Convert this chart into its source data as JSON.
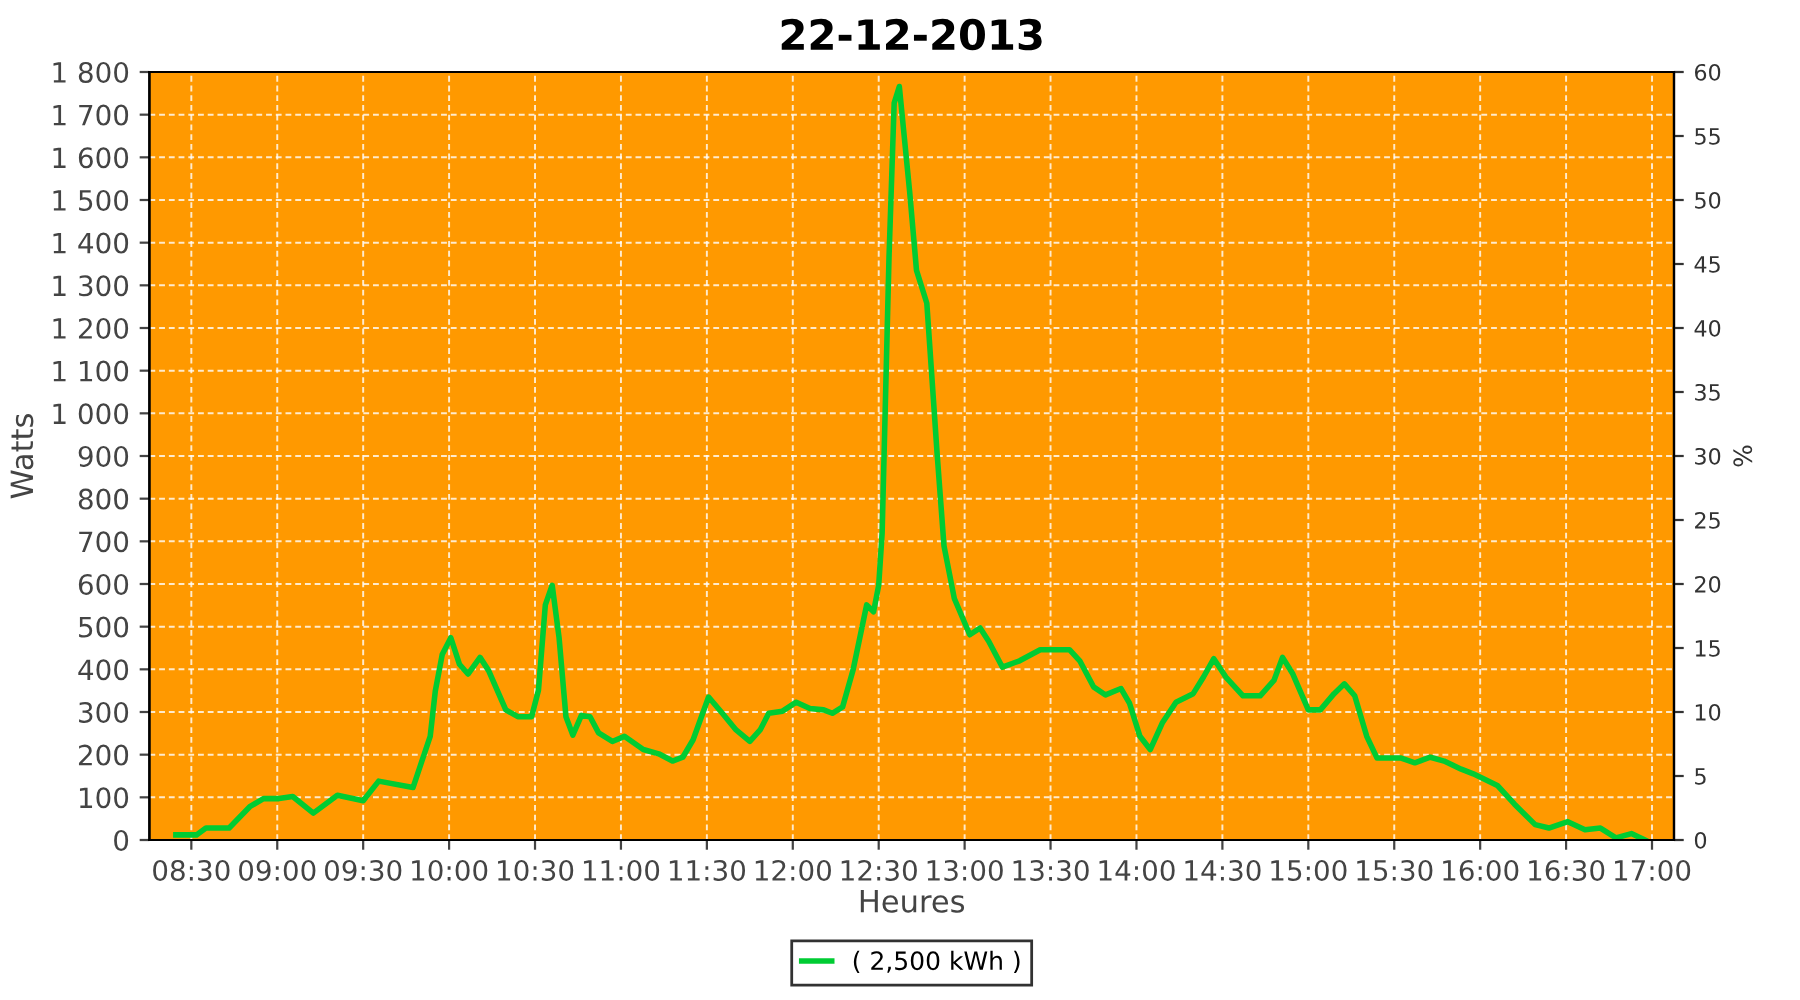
{
  "chart_data": {
    "type": "line",
    "title": "22-12-2013",
    "xlabel": "Heures",
    "ylabel": "Watts",
    "y2label": "%",
    "xlim": [
      8.256,
      17.128
    ],
    "xticks": [
      {
        "value": 8.5,
        "label": "08:30"
      },
      {
        "value": 9,
        "label": "09:00"
      },
      {
        "value": 9.5,
        "label": "09:30"
      },
      {
        "value": 10,
        "label": "10:00"
      },
      {
        "value": 10.5,
        "label": "10:30"
      },
      {
        "value": 11,
        "label": "11:00"
      },
      {
        "value": 11.5,
        "label": "11:30"
      },
      {
        "value": 12,
        "label": "12:00"
      },
      {
        "value": 12.5,
        "label": "12:30"
      },
      {
        "value": 13,
        "label": "13:00"
      },
      {
        "value": 13.5,
        "label": "13:30"
      },
      {
        "value": 14,
        "label": "14:00"
      },
      {
        "value": 14.5,
        "label": "14:30"
      },
      {
        "value": 15,
        "label": "15:00"
      },
      {
        "value": 15.5,
        "label": "15:30"
      },
      {
        "value": 16,
        "label": "16:00"
      },
      {
        "value": 16.5,
        "label": "16:30"
      },
      {
        "value": 17,
        "label": "17:00"
      }
    ],
    "ylim": [
      0,
      1800
    ],
    "yticks": [
      0,
      100,
      200,
      300,
      400,
      500,
      600,
      700,
      800,
      900,
      {
        "value": 1000,
        "label": "1 000"
      },
      {
        "value": 1100,
        "label": "1 100"
      },
      {
        "value": 1200,
        "label": "1 200"
      },
      {
        "value": 1300,
        "label": "1 300"
      },
      {
        "value": 1400,
        "label": "1 400"
      },
      {
        "value": 1500,
        "label": "1 500"
      },
      {
        "value": 1600,
        "label": "1 600"
      },
      {
        "value": 1700,
        "label": "1 700"
      },
      {
        "value": 1800,
        "label": "1 800"
      }
    ],
    "y2lim": [
      0,
      60
    ],
    "y2ticks": [
      0,
      5,
      10,
      15,
      20,
      25,
      30,
      35,
      40,
      45,
      50,
      55,
      60
    ],
    "grid": true,
    "legend": "bottom",
    "marker": "none",
    "line_style": "solid",
    "series": [
      {
        "name": "( 2,500 kWh )",
        "color": "#00cc33",
        "x": [
          8.41,
          8.53,
          8.585,
          8.72,
          8.84,
          8.92,
          9.01,
          9.09,
          9.21,
          9.35,
          9.5,
          9.59,
          9.79,
          9.89,
          9.92,
          9.96,
          10.01,
          10.06,
          10.11,
          10.18,
          10.23,
          10.33,
          10.4,
          10.48,
          10.52,
          10.56,
          10.6,
          10.64,
          10.68,
          10.72,
          10.77,
          10.82,
          10.87,
          10.95,
          11.02,
          11.13,
          11.22,
          11.3,
          11.36,
          11.42,
          11.51,
          11.59,
          11.67,
          11.75,
          11.81,
          11.86,
          11.94,
          12.02,
          12.1,
          12.18,
          12.23,
          12.29,
          12.35,
          12.43,
          12.47,
          12.5,
          12.52,
          12.56,
          12.59,
          12.62,
          12.68,
          12.72,
          12.78,
          12.84,
          12.88,
          12.94,
          13.03,
          13.09,
          13.14,
          13.22,
          13.32,
          13.44,
          13.61,
          13.67,
          13.75,
          13.82,
          13.91,
          13.96,
          14.02,
          14.08,
          14.15,
          14.23,
          14.33,
          14.39,
          14.45,
          14.52,
          14.62,
          14.72,
          14.8,
          14.85,
          14.91,
          15.0,
          15.07,
          15.15,
          15.21,
          15.27,
          15.34,
          15.4,
          15.54,
          15.62,
          15.71,
          15.79,
          15.89,
          15.96,
          16.1,
          16.2,
          16.32,
          16.4,
          16.51,
          16.61,
          16.7,
          16.79,
          16.88,
          16.96
        ],
        "values": [
          12,
          12,
          28,
          28,
          78,
          97,
          97,
          102,
          63,
          105,
          92,
          138,
          123,
          243,
          350,
          435,
          474,
          412,
          389,
          428,
          397,
          305,
          289,
          289,
          351,
          551,
          597,
          474,
          289,
          246,
          292,
          289,
          251,
          231,
          243,
          212,
          202,
          185,
          194,
          235,
          335,
          297,
          258,
          231,
          258,
          297,
          302,
          323,
          308,
          305,
          297,
          312,
          397,
          551,
          535,
          597,
          720,
          1366,
          1727,
          1766,
          1520,
          1335,
          1258,
          905,
          689,
          566,
          481,
          497,
          466,
          405,
          420,
          446,
          446,
          420,
          359,
          340,
          355,
          320,
          243,
          212,
          274,
          323,
          343,
          382,
          425,
          382,
          338,
          338,
          374,
          428,
          389,
          305,
          305,
          343,
          366,
          338,
          243,
          192,
          192,
          181,
          194,
          185,
          166,
          155,
          128,
          84,
          36,
          28,
          43,
          24,
          28,
          5,
          15,
          0
        ]
      }
    ]
  }
}
